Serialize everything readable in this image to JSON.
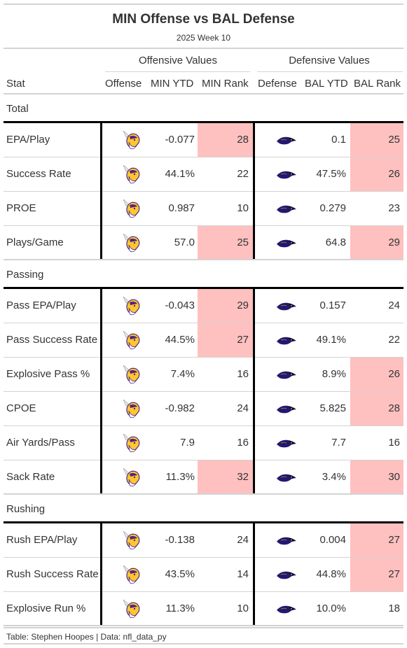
{
  "title": "MIN Offense vs BAL Defense",
  "subtitle": "2025 Week 10",
  "spanners": {
    "offense": "Offensive Values",
    "defense": "Defensive Values"
  },
  "columns": [
    "Stat",
    "Offense",
    "MIN YTD",
    "MIN Rank",
    "Defense",
    "BAL YTD",
    "BAL Rank"
  ],
  "icons": {
    "offense": "vikings-logo-icon",
    "defense": "ravens-logo-icon"
  },
  "colors": {
    "highlight": "#ffc0c0",
    "vikings_purple": "#4f2683",
    "vikings_gold": "#ffc62f",
    "ravens_purple": "#241773"
  },
  "groups": [
    {
      "label": "Total",
      "rows": [
        {
          "stat": "EPA/Play",
          "min_ytd": "-0.077",
          "min_rank": "28",
          "min_hl": true,
          "bal_ytd": "0.1",
          "bal_rank": "25",
          "bal_hl": true
        },
        {
          "stat": "Success Rate",
          "min_ytd": "44.1%",
          "min_rank": "22",
          "min_hl": false,
          "bal_ytd": "47.5%",
          "bal_rank": "26",
          "bal_hl": true
        },
        {
          "stat": "PROE",
          "min_ytd": "0.987",
          "min_rank": "10",
          "min_hl": false,
          "bal_ytd": "0.279",
          "bal_rank": "23",
          "bal_hl": false
        },
        {
          "stat": "Plays/Game",
          "min_ytd": "57.0",
          "min_rank": "25",
          "min_hl": true,
          "bal_ytd": "64.8",
          "bal_rank": "29",
          "bal_hl": true
        }
      ]
    },
    {
      "label": "Passing",
      "rows": [
        {
          "stat": "Pass EPA/Play",
          "min_ytd": "-0.043",
          "min_rank": "29",
          "min_hl": true,
          "bal_ytd": "0.157",
          "bal_rank": "24",
          "bal_hl": false
        },
        {
          "stat": "Pass Success Rate",
          "min_ytd": "44.5%",
          "min_rank": "27",
          "min_hl": true,
          "bal_ytd": "49.1%",
          "bal_rank": "22",
          "bal_hl": false
        },
        {
          "stat": "Explosive Pass %",
          "min_ytd": "7.4%",
          "min_rank": "16",
          "min_hl": false,
          "bal_ytd": "8.9%",
          "bal_rank": "26",
          "bal_hl": true
        },
        {
          "stat": "CPOE",
          "min_ytd": "-0.982",
          "min_rank": "24",
          "min_hl": false,
          "bal_ytd": "5.825",
          "bal_rank": "28",
          "bal_hl": true
        },
        {
          "stat": "Air Yards/Pass",
          "min_ytd": "7.9",
          "min_rank": "16",
          "min_hl": false,
          "bal_ytd": "7.7",
          "bal_rank": "16",
          "bal_hl": false
        },
        {
          "stat": "Sack Rate",
          "min_ytd": "11.3%",
          "min_rank": "32",
          "min_hl": true,
          "bal_ytd": "3.4%",
          "bal_rank": "30",
          "bal_hl": true
        }
      ]
    },
    {
      "label": "Rushing",
      "rows": [
        {
          "stat": "Rush EPA/Play",
          "min_ytd": "-0.138",
          "min_rank": "24",
          "min_hl": false,
          "bal_ytd": "0.004",
          "bal_rank": "27",
          "bal_hl": true
        },
        {
          "stat": "Rush Success Rate",
          "min_ytd": "43.5%",
          "min_rank": "14",
          "min_hl": false,
          "bal_ytd": "44.8%",
          "bal_rank": "27",
          "bal_hl": true
        },
        {
          "stat": "Explosive Run %",
          "min_ytd": "11.3%",
          "min_rank": "10",
          "min_hl": false,
          "bal_ytd": "10.0%",
          "bal_rank": "18",
          "bal_hl": false
        }
      ]
    }
  ],
  "footer": "Table: Stephen Hoopes | Data: nfl_data_py"
}
